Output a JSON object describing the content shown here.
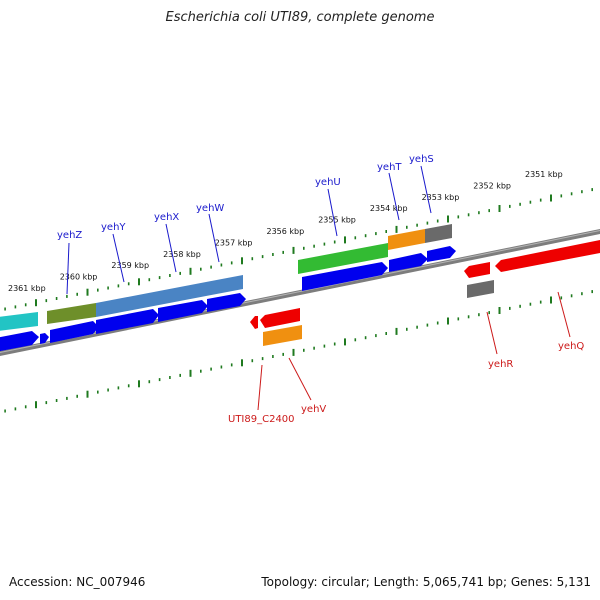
{
  "title": "Escherichia coli UTI89, complete genome",
  "footer": {
    "accession": "Accession: NC_007946",
    "topology": "Topology: circular; Length: 5,065,741 bp; Genes: 5,131"
  },
  "colors": {
    "backbone": "#7d7d7d",
    "tick": "#1f7a1f",
    "forward_label": "#1a1acc",
    "reverse_label": "#cc1a1a",
    "cds_blue": "#0000ee",
    "cds_red": "#ee0000",
    "teal": "#22c4c4",
    "olive": "#6e8f2a",
    "steel": "#4a84c4",
    "green": "#33bb33",
    "orange": "#f09010",
    "gray": "#6a6a6a"
  },
  "kbp_labels": [
    "2361 kbp",
    "2360 kbp",
    "2359 kbp",
    "2358 kbp",
    "2357 kbp",
    "2356 kbp",
    "2355 kbp",
    "2354 kbp",
    "2353 kbp",
    "2352 kbp",
    "2351 kbp"
  ],
  "forward_genes": [
    "yehZ",
    "yehY",
    "yehX",
    "yehW",
    "yehU",
    "yehT",
    "yehS"
  ],
  "reverse_genes": [
    "UTI89_C2400",
    "yehV",
    "yehR",
    "yehQ"
  ]
}
